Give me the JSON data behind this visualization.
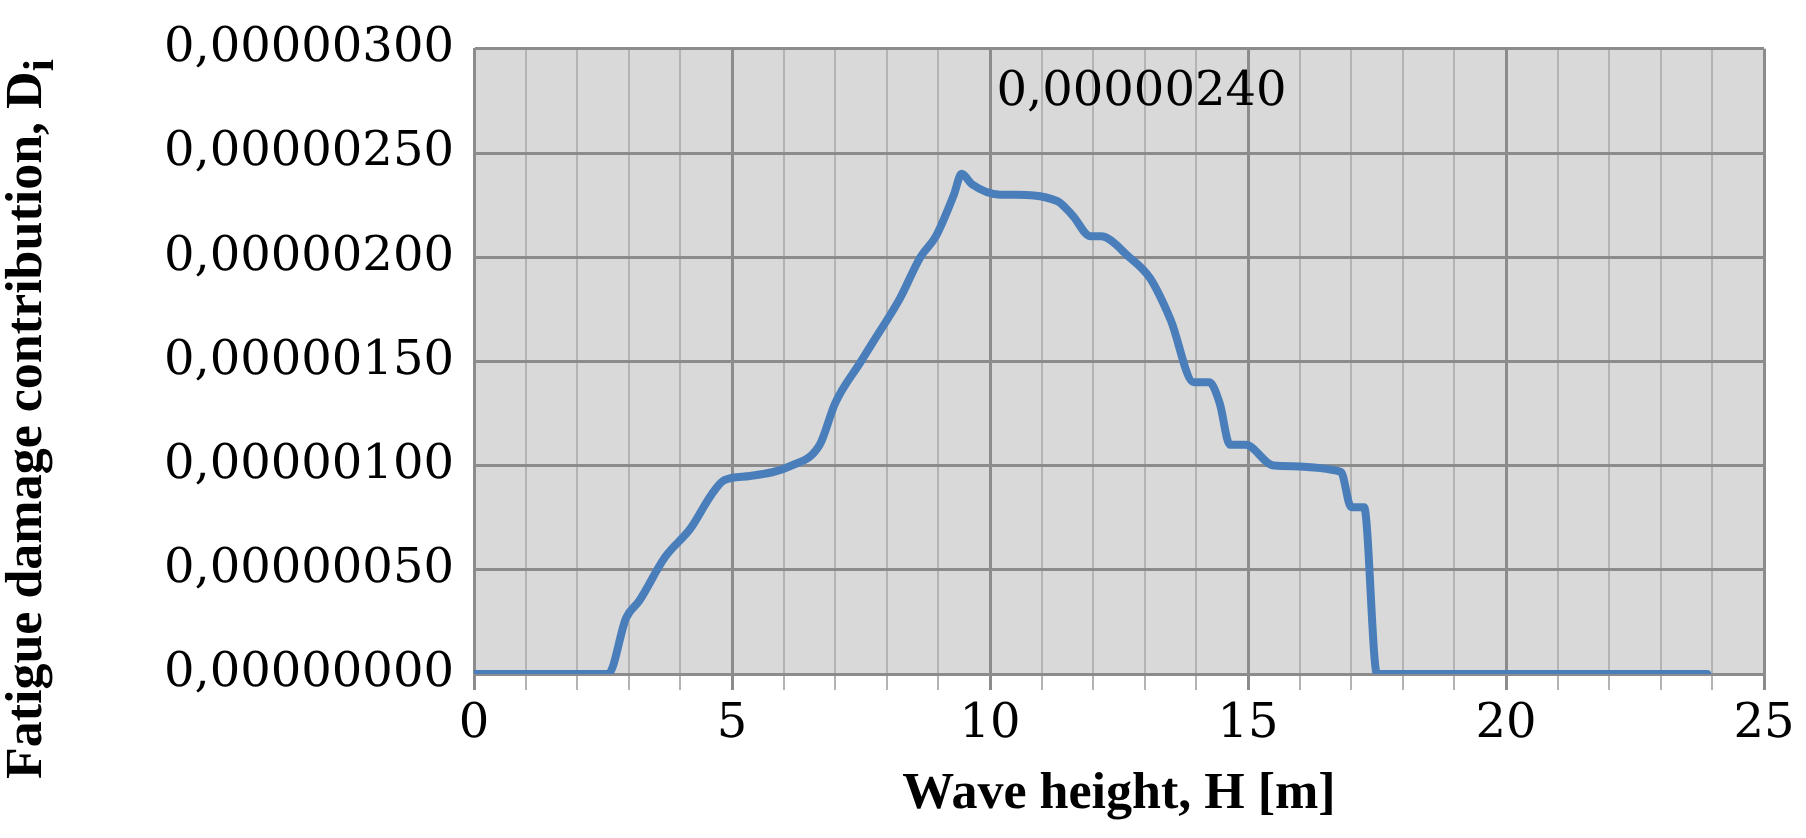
{
  "chart_data": {
    "type": "line",
    "xlabel": "Wave height, H [m]",
    "ylabel": "Fatigue damage contribution, D$_{i}$",
    "x": [
      0,
      2.6,
      2.95,
      3.2,
      3.7,
      4.2,
      4.6,
      4.85,
      5.35,
      6.15,
      6.7,
      7.0,
      7.5,
      7.75,
      8.25,
      8.65,
      8.95,
      9.3,
      9.45,
      9.65,
      10.2,
      10.4,
      11.3,
      11.6,
      11.95,
      12.15,
      12.7,
      13.1,
      13.5,
      13.95,
      14.25,
      14.45,
      14.65,
      14.95,
      15.5,
      16.8,
      17.0,
      17.25,
      17.5,
      18.0,
      23.9
    ],
    "series": [
      {
        "color": "#4a7ebb",
        "values": [
          0,
          0,
          2.7e-07,
          3.5e-07,
          5.6e-07,
          7e-07,
          8.6e-07,
          9.3e-07,
          9.5e-07,
          1e-06,
          1.1e-06,
          1.3e-06,
          1.5e-06,
          1.6e-06,
          1.8e-06,
          2e-06,
          2.1e-06,
          2.3e-06,
          2.4e-06,
          2.35e-06,
          2.3e-06,
          2.3e-06,
          2.27e-06,
          2.2e-06,
          2.1e-06,
          2.1e-06,
          2e-06,
          1.9e-06,
          1.7e-06,
          1.4e-06,
          1.4e-06,
          1.3e-06,
          1.1e-06,
          1.1e-06,
          1e-06,
          9.7e-07,
          8e-07,
          8e-07,
          0,
          0,
          0
        ]
      }
    ],
    "xlim": [
      0,
      25
    ],
    "xticks": [
      0,
      {
        "value": 1,
        "label": null
      },
      {
        "value": 2,
        "label": null
      },
      {
        "value": 3,
        "label": null
      },
      {
        "value": 4,
        "label": null
      },
      5,
      {
        "value": 6,
        "label": null
      },
      {
        "value": 7,
        "label": null
      },
      {
        "value": 8,
        "label": null
      },
      {
        "value": 9,
        "label": null
      },
      10,
      {
        "value": 11,
        "label": null
      },
      {
        "value": 12,
        "label": null
      },
      {
        "value": 13,
        "label": null
      },
      {
        "value": 14,
        "label": null
      },
      15,
      {
        "value": 16,
        "label": null
      },
      {
        "value": 17,
        "label": null
      },
      {
        "value": 18,
        "label": null
      },
      {
        "value": 19,
        "label": null
      },
      20,
      {
        "value": 21,
        "label": null
      },
      {
        "value": 22,
        "label": null
      },
      {
        "value": 23,
        "label": null
      },
      {
        "value": 24,
        "label": null
      },
      25
    ],
    "ylim": [
      0,
      3e-06
    ],
    "yticks": [
      {
        "value": 0,
        "label": "0,00000000"
      },
      {
        "value": 5e-07,
        "label": "0,00000050"
      },
      {
        "value": 1e-06,
        "label": "0,00000100"
      },
      {
        "value": 1.5e-06,
        "label": "0,00000150"
      },
      {
        "value": 2e-06,
        "label": "0,00000200"
      },
      {
        "value": 2.5e-06,
        "label": "0,00000250"
      },
      {
        "value": 3e-06,
        "label": "0,00000300"
      }
    ],
    "grid": true,
    "marker": "none",
    "line_style": "solid",
    "annotations": [
      "0,00000240"
    ]
  }
}
